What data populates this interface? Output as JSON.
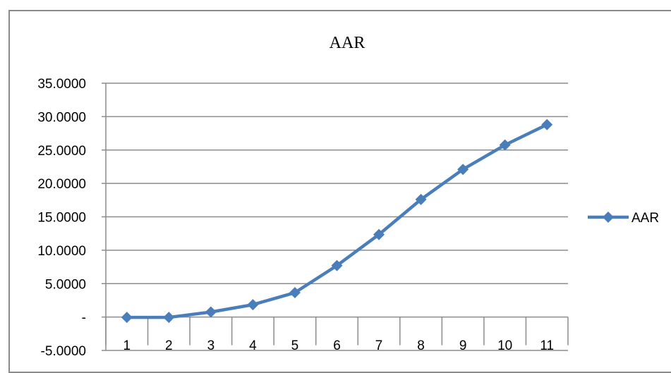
{
  "chart_data": {
    "type": "line",
    "title": "AAR",
    "xlabel": "",
    "ylabel": "",
    "categories": [
      "1",
      "2",
      "3",
      "4",
      "5",
      "6",
      "7",
      "8",
      "9",
      "10",
      "11"
    ],
    "series": [
      {
        "name": "AAR",
        "values": [
          -0.05,
          -0.05,
          0.75,
          1.85,
          3.65,
          7.7,
          12.35,
          17.6,
          22.1,
          25.75,
          28.8
        ],
        "color": "#4a7ebb",
        "marker": "diamond"
      }
    ],
    "ylim": [
      -5,
      35
    ],
    "yticks": [
      -5,
      0,
      5,
      10,
      15,
      20,
      25,
      30,
      35
    ],
    "ytick_labels": [
      "-5.0000",
      "-",
      "5.0000",
      "10.0000",
      "15.0000",
      "20.0000",
      "25.0000",
      "30.0000",
      "35.0000"
    ],
    "grid": "horizontal",
    "legend": "right"
  }
}
